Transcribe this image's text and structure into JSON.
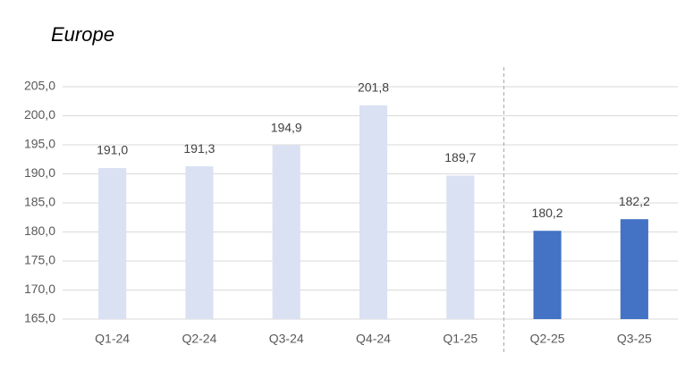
{
  "chart_data": {
    "type": "bar",
    "title": "Europe",
    "categories": [
      "Q1-24",
      "Q2-24",
      "Q3-24",
      "Q4-24",
      "Q1-25",
      "Q2-25",
      "Q3-25"
    ],
    "values": [
      191.0,
      191.3,
      194.9,
      201.8,
      189.7,
      180.2,
      182.2
    ],
    "value_labels": [
      "191,0",
      "191,3",
      "194,9",
      "201,8",
      "189,7",
      "180,2",
      "182,2"
    ],
    "colors": [
      "#dae1f3",
      "#dae1f3",
      "#dae1f3",
      "#dae1f3",
      "#dae1f3",
      "#4472c4",
      "#4472c4"
    ],
    "ylim": [
      165,
      205
    ],
    "yticks": [
      {
        "value": 165,
        "label": "165,0"
      },
      {
        "value": 170,
        "label": "170,0"
      },
      {
        "value": 175,
        "label": "175,0"
      },
      {
        "value": 180,
        "label": "180,0"
      },
      {
        "value": 185,
        "label": "185,0"
      },
      {
        "value": 190,
        "label": "190,0"
      },
      {
        "value": 195,
        "label": "195,0"
      },
      {
        "value": 200,
        "label": "200,0"
      },
      {
        "value": 205,
        "label": "205,0"
      }
    ],
    "grid": true
  }
}
